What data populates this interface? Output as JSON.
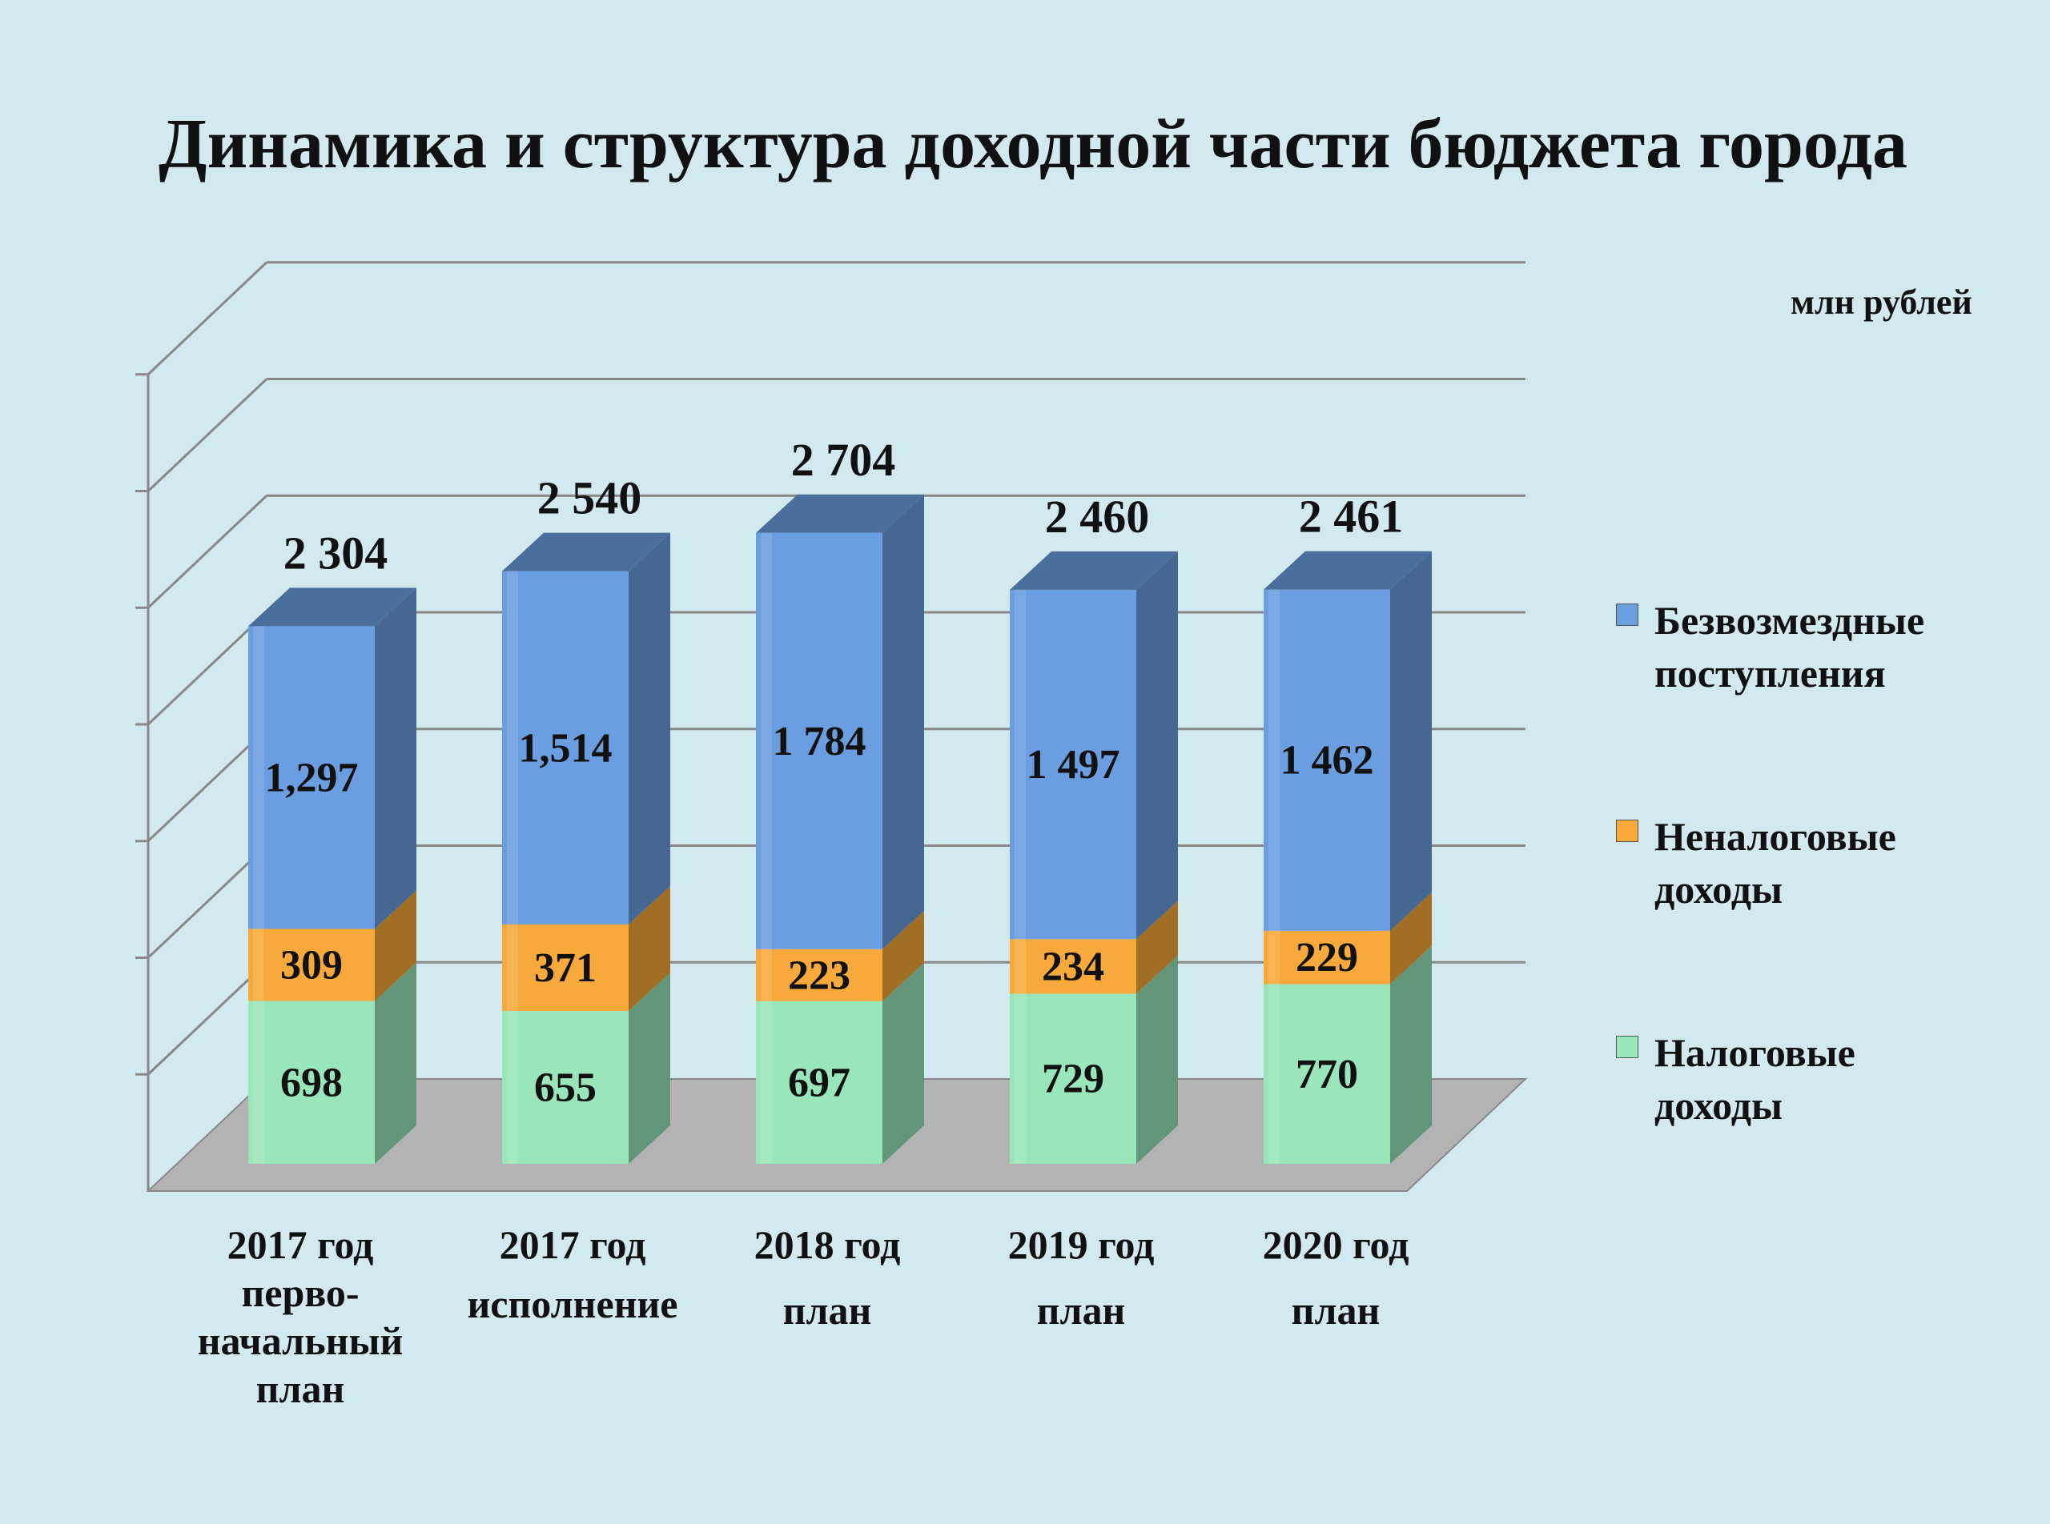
{
  "chart_data": {
    "type": "bar",
    "stacked": true,
    "three_d": true,
    "title": "Динамика и структура доходной части бюджета города",
    "unit": "млн рублей",
    "categories": [
      {
        "year": "2017 год",
        "sub": "перво-\nначальный\nплан"
      },
      {
        "year": "2017 год",
        "sub": "исполнение"
      },
      {
        "year": "2018 год",
        "sub": "план"
      },
      {
        "year": "2019 год",
        "sub": "план"
      },
      {
        "year": "2020 год",
        "sub": "план"
      }
    ],
    "series": [
      {
        "name": "Налоговые доходы",
        "color": "#98e6b9",
        "values": [
          698,
          655,
          697,
          729,
          770
        ],
        "labels": [
          "698",
          "655",
          "697",
          "729",
          "770"
        ]
      },
      {
        "name": "Неналоговые доходы",
        "color": "#f7a93b",
        "values": [
          309,
          371,
          223,
          234,
          229
        ],
        "labels": [
          "309",
          "371",
          "223",
          "234",
          "229"
        ]
      },
      {
        "name": "Безвозмездные поступления",
        "color": "#6a9ee0",
        "values": [
          1297,
          1514,
          1784,
          1497,
          1462
        ],
        "labels": [
          "1,297",
          "1,514",
          "1 784",
          "1 497",
          "1 462"
        ]
      }
    ],
    "totals": [
      "2 304",
      "2 540",
      "2 704",
      "2 460",
      "2 461"
    ],
    "legend_order": [
      2,
      1,
      0
    ],
    "legend_position": "right",
    "ylim": [
      0,
      3500
    ],
    "grid": true
  }
}
